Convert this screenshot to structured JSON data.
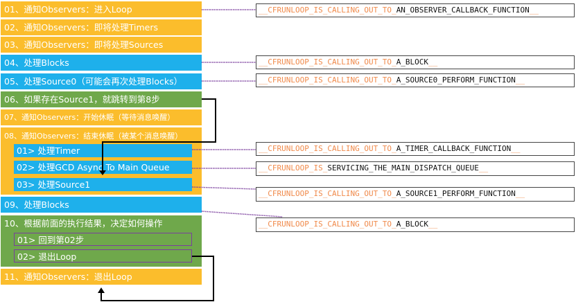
{
  "colors": {
    "observer": "#FBBD2C",
    "process": "#1EB0EB",
    "decision": "#6FA84B",
    "prefix": "#F08A4B",
    "connector": "#7A3E9D"
  },
  "steps": [
    "01、通知Observers：进入Loop",
    "02、通知Observers：即将处理Timers",
    "03、通知Observers：即将处理Sources",
    "04、处理Blocks",
    "05、处理Source0（可能会再次处理Blocks）",
    "06、如果存在Source1，就跳转到第8步",
    "07、通知Observers：开始休眠（等待消息唤醒）",
    "08、通知Observers：结束休眠（被某个消息唤醒）",
    "09、处理Blocks",
    "10、根据前面的执行结果，决定如何操作",
    "11、通知Observers：退出Loop"
  ],
  "step8_sub": [
    "01> 处理Timer",
    "02> 处理GCD Async To Main Queue",
    "03> 处理Source1"
  ],
  "step10_sub": [
    "01> 回到第02步",
    "02> 退出Loop"
  ],
  "functions": [
    {
      "prefix": "__CFRUNLOOP_IS_CALLING_OUT_TO_",
      "name": "AN_OBSERVER_CALLBACK_FUNCTION",
      "suffix": "__"
    },
    {
      "prefix": "__CFRUNLOOP_IS_CALLING_OUT_TO_",
      "name": "A_BLOCK",
      "suffix": "__"
    },
    {
      "prefix": "__CFRUNLOOP_IS_CALLING_OUT_TO_",
      "name": "A_SOURCE0_PERFORM_FUNCTION",
      "suffix": "__"
    },
    {
      "prefix": "__CFRUNLOOP_IS_CALLING_OUT_TO_",
      "name": "A_TIMER_CALLBACK_FUNCTION",
      "suffix": "__"
    },
    {
      "prefix": "__CFRUNLOOP_IS_",
      "name": "SERVICING_THE_MAIN_DISPATCH_QUEUE",
      "suffix": "__"
    },
    {
      "prefix": "__CFRUNLOOP_IS_CALLING_OUT_TO_",
      "name": "A_SOURCE1_PERFORM_FUNCTION",
      "suffix": "__"
    },
    {
      "prefix": "__CFRUNLOOP_IS_CALLING_OUT_TO_",
      "name": "A_BLOCK",
      "suffix": "__"
    }
  ]
}
